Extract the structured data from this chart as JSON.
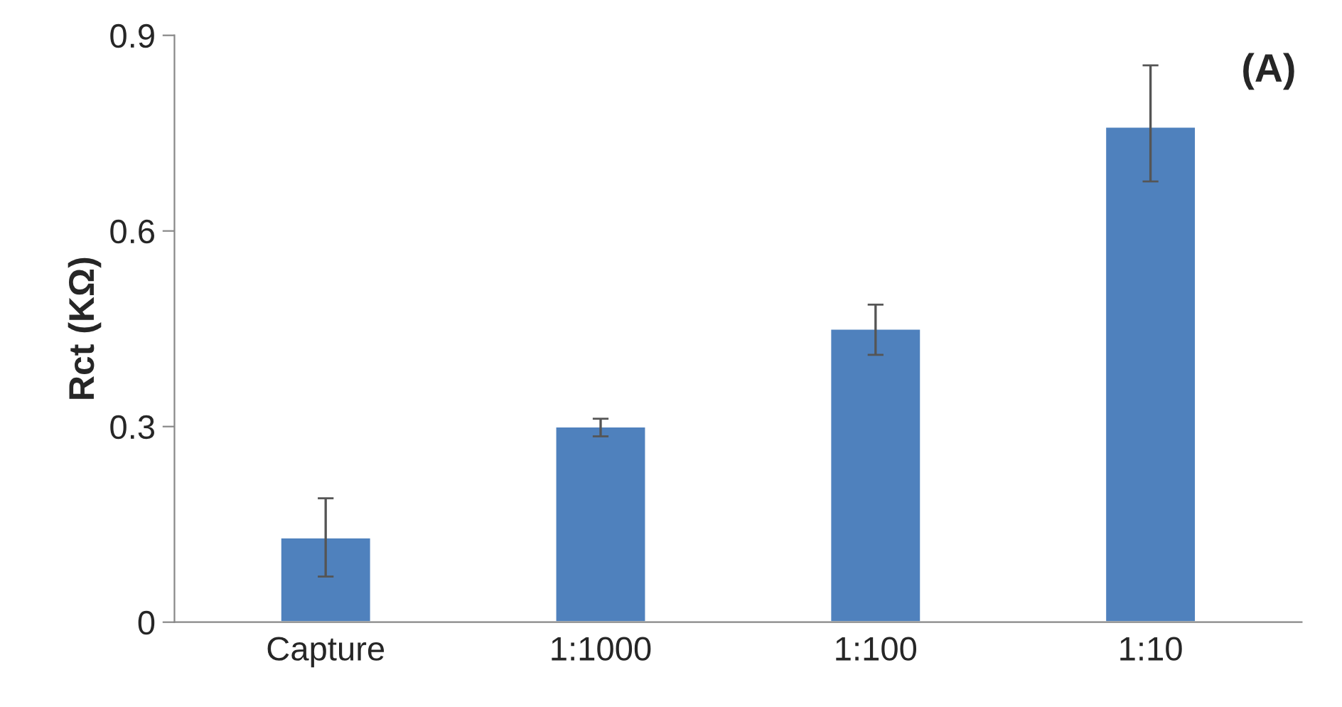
{
  "chart_data": {
    "type": "bar",
    "ylabel": "Rct (KΩ)",
    "annotations": [
      "(A)"
    ],
    "categories": [
      "Capture",
      "1:1000",
      "1:100",
      "1:10"
    ],
    "values": [
      0.13,
      0.3,
      0.45,
      0.76
    ],
    "errors": [
      [
        0.07,
        0.19
      ],
      [
        0.285,
        0.312
      ],
      [
        0.41,
        0.487
      ],
      [
        0.676,
        0.854
      ]
    ],
    "color": "#4f81bd",
    "ylim": [
      0,
      0.9
    ],
    "yticks": [
      0,
      0.3,
      0.6,
      0.9
    ],
    "grid": false
  }
}
